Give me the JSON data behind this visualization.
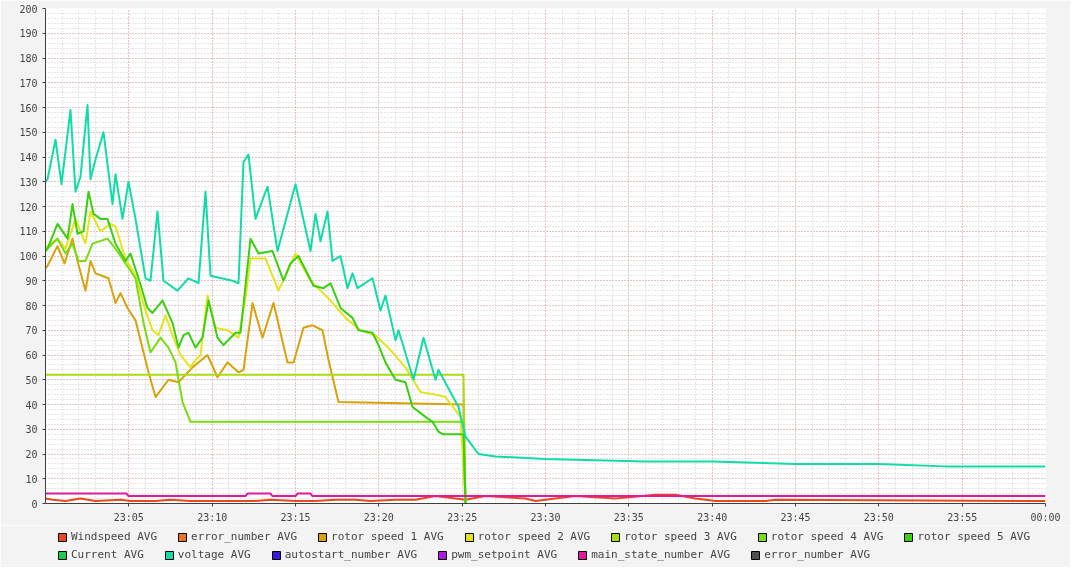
{
  "chart_data": {
    "type": "line",
    "xlim": [
      23.0,
      24.0
    ],
    "xticks": [
      {
        "value": 23.0833,
        "label": "23:05"
      },
      {
        "value": 23.1667,
        "label": "23:10"
      },
      {
        "value": 23.25,
        "label": "23:15"
      },
      {
        "value": 23.3333,
        "label": "23:20"
      },
      {
        "value": 23.4167,
        "label": "23:25"
      },
      {
        "value": 23.5,
        "label": "23:30"
      },
      {
        "value": 23.5833,
        "label": "23:35"
      },
      {
        "value": 23.6667,
        "label": "23:40"
      },
      {
        "value": 23.75,
        "label": "23:45"
      },
      {
        "value": 23.8333,
        "label": "23:50"
      },
      {
        "value": 23.9167,
        "label": "23:55"
      },
      {
        "value": 24.0,
        "label": "00:00"
      }
    ],
    "ylim": [
      0,
      200
    ],
    "yticks": [
      0,
      10,
      20,
      30,
      40,
      50,
      60,
      70,
      80,
      90,
      100,
      110,
      120,
      130,
      140,
      150,
      160,
      170,
      180,
      190,
      200
    ],
    "grid": true,
    "legend": "bottom",
    "marker": "none",
    "line_style": "solid",
    "series": [
      {
        "name": "Windspeed AVG",
        "color": "#e84a1c",
        "x": [
          23.0,
          23.007,
          23.02,
          23.035,
          23.05,
          23.075,
          23.085,
          23.11,
          23.125,
          23.145,
          23.165,
          23.19,
          23.21,
          23.225,
          23.25,
          23.27,
          23.29,
          23.31,
          23.325,
          23.35,
          23.37,
          23.39,
          23.42,
          23.44,
          23.48,
          23.49,
          23.51,
          23.53,
          23.57,
          23.61,
          23.63,
          23.65,
          23.67,
          23.72,
          23.73,
          24.0
        ],
        "values": [
          2,
          1.5,
          1,
          2,
          1,
          1.5,
          1,
          1,
          1.5,
          1,
          1,
          1,
          1,
          1.5,
          1,
          1,
          1.5,
          1.5,
          1,
          1.5,
          1.5,
          3,
          1.5,
          3,
          2,
          1,
          2,
          3,
          2,
          3.5,
          3.5,
          2,
          1,
          1,
          1.5,
          1
        ]
      },
      {
        "name": "error_number AVG",
        "color": "#e8761c"
      },
      {
        "name": "rotor speed 1 AVG",
        "color": "#d8a20c",
        "x": [
          23.0,
          23.002,
          23.012,
          23.019,
          23.027,
          23.032,
          23.04,
          23.045,
          23.05,
          23.063,
          23.07,
          23.075,
          23.082,
          23.09,
          23.103,
          23.11,
          23.123,
          23.133,
          23.147,
          23.162,
          23.172,
          23.182,
          23.193,
          23.198,
          23.207,
          23.217,
          23.228,
          23.242,
          23.248,
          23.258,
          23.267,
          23.277,
          23.283,
          23.293,
          23.418,
          23.42
        ],
        "values": [
          95,
          96,
          104,
          97,
          107,
          98,
          86,
          98,
          93,
          91,
          81,
          85,
          79,
          74,
          53,
          43,
          50,
          49,
          55,
          60,
          51,
          57,
          53,
          54,
          81,
          67,
          81,
          57,
          57,
          71,
          72,
          70,
          58,
          41,
          40,
          0
        ]
      },
      {
        "name": "rotor speed 2 AVG",
        "color": "#e4e41c",
        "x": [
          23.0,
          23.002,
          23.012,
          23.02,
          23.03,
          23.04,
          23.045,
          23.055,
          23.065,
          23.07,
          23.08,
          23.09,
          23.1,
          23.107,
          23.113,
          23.12,
          23.127,
          23.135,
          23.145,
          23.15,
          23.155,
          23.162,
          23.17,
          23.182,
          23.193,
          23.2,
          23.205,
          23.22,
          23.233,
          23.25,
          23.265,
          23.275,
          23.285,
          23.3,
          23.315,
          23.33,
          23.345,
          23.36,
          23.375,
          23.39,
          23.4,
          23.415,
          23.42
        ],
        "values": [
          103,
          104,
          107,
          103,
          115,
          105,
          118,
          110,
          113,
          112,
          99,
          92,
          78,
          70,
          68,
          76,
          68,
          60,
          55,
          58,
          60,
          84,
          71,
          70,
          67,
          83,
          99,
          99,
          86,
          101,
          90,
          86,
          82,
          75,
          70,
          68,
          62,
          55,
          45,
          44,
          43,
          35,
          0
        ]
      },
      {
        "name": "rotor speed 3 AVG",
        "color": "#aadc10",
        "x": [
          23.0,
          23.418,
          23.42
        ],
        "values": [
          52,
          52,
          0
        ]
      },
      {
        "name": "rotor speed 4 AVG",
        "color": "#78dc10",
        "x": [
          23.0,
          23.002,
          23.012,
          23.02,
          23.027,
          23.033,
          23.04,
          23.047,
          23.062,
          23.07,
          23.08,
          23.09,
          23.098,
          23.105,
          23.115,
          23.123,
          23.13,
          23.137,
          23.145,
          23.418,
          23.42
        ],
        "values": [
          102,
          103,
          107,
          101,
          105,
          98,
          98,
          105,
          107,
          103,
          97,
          91,
          73,
          61,
          67,
          63,
          57,
          41,
          33,
          33,
          0
        ]
      },
      {
        "name": "rotor speed 5 AVG",
        "color": "#38d010",
        "x": [
          23.0,
          23.002,
          23.012,
          23.022,
          23.027,
          23.032,
          23.038,
          23.043,
          23.048,
          23.055,
          23.062,
          23.07,
          23.08,
          23.085,
          23.093,
          23.102,
          23.107,
          23.117,
          23.127,
          23.133,
          23.138,
          23.143,
          23.15,
          23.157,
          23.163,
          23.172,
          23.178,
          23.19,
          23.195,
          23.205,
          23.213,
          23.227,
          23.238,
          23.245,
          23.253,
          23.268,
          23.278,
          23.285,
          23.295,
          23.307,
          23.313,
          23.327,
          23.333,
          23.34,
          23.35,
          23.36,
          23.367,
          23.38,
          23.387,
          23.393,
          23.397,
          23.418,
          23.42
        ],
        "values": [
          102,
          103,
          113,
          107,
          121,
          109,
          110,
          126,
          117,
          115,
          115,
          105,
          98,
          101,
          91,
          79,
          77,
          82,
          73,
          63,
          68,
          69,
          63,
          67,
          82,
          67,
          64,
          69,
          69,
          107,
          101,
          102,
          90,
          97,
          100,
          88,
          87,
          89,
          79,
          75,
          70,
          69,
          64,
          57,
          50,
          49,
          39,
          35,
          33,
          29,
          28,
          28,
          0
        ]
      },
      {
        "name": "Current AVG",
        "color": "#18d048"
      },
      {
        "name": "voltage AVG",
        "color": "#10dca8",
        "x": [
          23.0,
          23.002,
          23.01,
          23.016,
          23.025,
          23.03,
          23.035,
          23.042,
          23.045,
          23.05,
          23.058,
          23.067,
          23.07,
          23.077,
          23.083,
          23.09,
          23.1,
          23.105,
          23.112,
          23.118,
          23.132,
          23.143,
          23.153,
          23.16,
          23.165,
          23.187,
          23.193,
          23.198,
          23.203,
          23.21,
          23.222,
          23.232,
          23.25,
          23.265,
          23.27,
          23.275,
          23.282,
          23.287,
          23.295,
          23.302,
          23.307,
          23.312,
          23.327,
          23.335,
          23.34,
          23.35,
          23.353,
          23.368,
          23.378,
          23.39,
          23.393,
          23.413,
          23.42,
          23.433,
          23.45,
          23.5,
          23.6,
          23.667,
          23.75,
          23.833,
          23.9,
          24.0
        ],
        "values": [
          130,
          131,
          147,
          129,
          159,
          126,
          132,
          161,
          131,
          139,
          150,
          121,
          133,
          115,
          130,
          115,
          91,
          90,
          118,
          90,
          86,
          91,
          89,
          126,
          92,
          90,
          89,
          138,
          141,
          115,
          128,
          102,
          129,
          102,
          117,
          106,
          118,
          98,
          100,
          87,
          93,
          87,
          91,
          78,
          84,
          66,
          70,
          50,
          67,
          50,
          54,
          39,
          27,
          20,
          19,
          18,
          17,
          17,
          16,
          16,
          15,
          15
        ]
      },
      {
        "name": "autostart_number AVG",
        "color": "#3818e0"
      },
      {
        "name": "pwm_setpoint AVG",
        "color": "#b018e0"
      },
      {
        "name": "main_state_number AVG",
        "color": "#e018a0",
        "x": [
          23.0,
          23.081,
          23.083,
          23.2,
          23.202,
          23.225,
          23.227,
          23.25,
          23.252,
          23.265,
          23.267,
          24.0
        ],
        "values": [
          4,
          4,
          3,
          3,
          4,
          4,
          3,
          3,
          4,
          4,
          3,
          3
        ]
      },
      {
        "name": "error_number AVG",
        "color": "#505050"
      }
    ]
  }
}
